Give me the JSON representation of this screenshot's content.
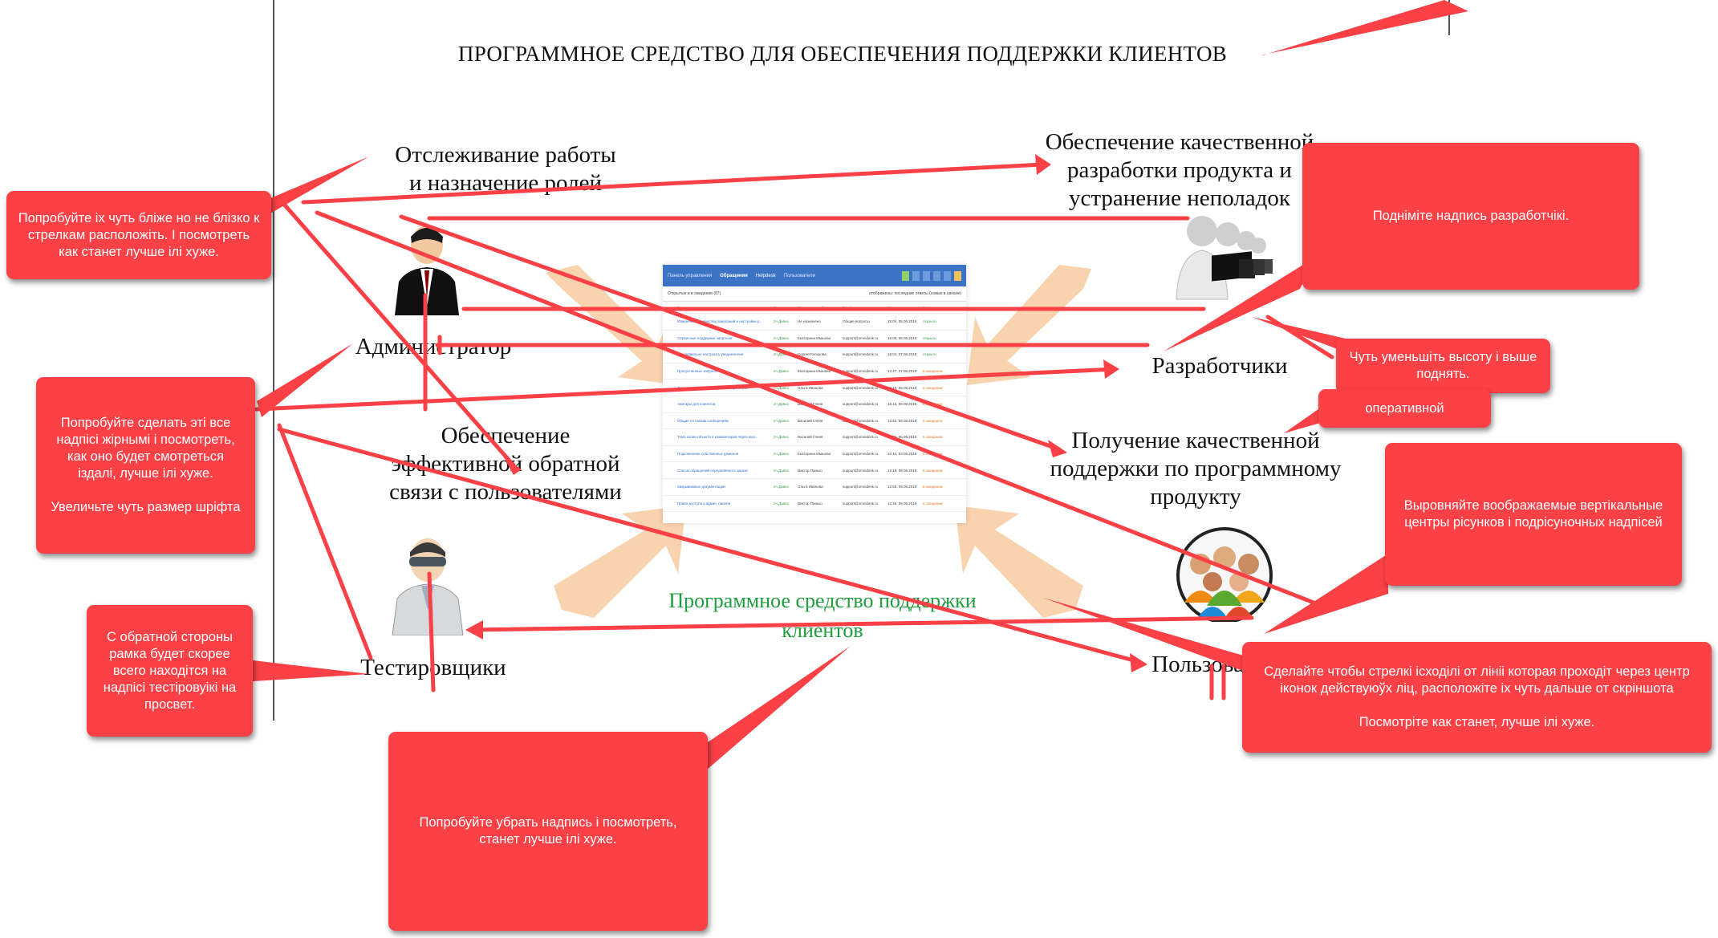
{
  "title": "ПРОГРАММНОЕ СРЕДСТВО ДЛЯ ОБЕСПЕЧЕНИЯ ПОДДЕРЖКИ КЛИЕНТОВ",
  "center_caption": "Программное средство поддержки клиентов",
  "features": {
    "tracking": "Отслеживание работы\nи назначение ролей",
    "quality_dev": "Обеспечение качественной\nразработки продукта и\nустранение неполадок",
    "feedback": "Обеспечение\nэффективной обратной\nсвязи с пользователями",
    "support": "Получение качественной\nподдержки по программному\nпродукту"
  },
  "roles": {
    "admin": "Администратор",
    "developers": "Разработчики",
    "testers": "Тестировщики",
    "users": "Пользователи"
  },
  "callouts": [
    "Попробуйте іх чуть бліже но не блізко к стрелкам расположіть. І посмотреть как станет лучше ілі хуже.",
    "Поднiміте надпись разработчікі.",
    "Чуть уменьшіть высоту і выше поднять.",
    "оперативной",
    "Попробуйте сделать эті все надпісі жірнымі і посмотреть, как оно будет смотреться іздалі, лучше ілі хуже.\n\nУвеличьте чуть размер шріфта",
    "Выровняйте воображаемые вертікальные центры рісунков і подрісуночных надпісей",
    "С обратной стороны рамка будет скорее всего находітся на надпісі тестіровуікі на просвет.",
    "Сделайте чтобы стрелкі ісходілі от лініі которая проходіт через центр іконок действуюўх ліц, расположіте іх чуть дальше от скріншота\n\nПосмотріте как станет, лучше ілі хуже.",
    "Попробуйте убрать надпись і посмотреть, станет лучше ілі хуже."
  ],
  "screenshot": {
    "nav": [
      "Панель управления",
      "Обращения",
      "Helpdesk",
      "Пользователи"
    ],
    "filter_left": "Открытые и в ожидании (87)",
    "filter_right": "отображены: последние ответы (новые в начале)",
    "columns": [
      "Тема",
      "Статус",
      "Ответственный",
      "Email адрес",
      "Создано",
      "Статус"
    ],
    "rows": [
      [
        "Изменения количества пожеланий и настройки у...",
        "2ч Давно",
        "Не назначено",
        "Общие вопросы",
        "15:04, 08.06.2018",
        "открыто"
      ],
      [
        "Сервисные поддержки запросов",
        "2ч Давно",
        "Екатерина Иванова",
        "support@omnidesk.ru",
        "15:00, 08.06.2018",
        "открыто"
      ],
      [
        "Как правильно настроить уведомления",
        "2ч Давно",
        "Сергей Клецкова",
        "support@omnidesk.ru",
        "15:04, 07.06.2018",
        "открыто"
      ],
      [
        "Просроченные запросы",
        "2ч Давно",
        "Екатерина Иванова",
        "support@omnidesk.ru",
        "14:47, 07.06.2018",
        "в ожидании"
      ],
      [
        "Дополнительные поля данных в фильтрах",
        "2ч Давно",
        "Ольга Иванова",
        "support@omnidesk.ru",
        "16:10, 06.06.2018",
        "в ожидании"
      ],
      [
        "Аватары для клиентов",
        "2ч Давно",
        "Василий Глеев",
        "support@omnidesk.ru",
        "16:16, 06.06.2018",
        "в ожидании"
      ],
      [
        "Общие по новым сообщениям",
        "2ч Давно",
        "Василий Глеев",
        "support@omnidesk.ru",
        "12:52, 06.06.2018",
        "в ожидании"
      ],
      [
        "Тема копии объекта в комментарии через мол...",
        "2ч Давно",
        "Василий Глеев",
        "support@omnidesk.ru",
        "10:02, 06.06.2018",
        "в ожидании"
      ],
      [
        "Подключение собственных доменов",
        "2ч Давно",
        "Екатерина Иванова",
        "support@omnidesk.ru",
        "10:44, 02.06.2018",
        "в ожидании"
      ],
      [
        "Список обращений определённого заказа",
        "2ч Давно",
        "Виктор Панько",
        "support@omnidesk.ru",
        "12:16, 08.06.2018",
        "в ожидании"
      ],
      [
        "Закрываемые документации",
        "2ч Давно",
        "Ольга Иванова",
        "support@omnidesk.ru",
        "12:55, 08.06.2018",
        "в ожидании"
      ],
      [
        "Права доступа к админ. панели",
        "2ч Давно",
        "Виктор Панько",
        "support@omnidesk.ru",
        "13:46, 08.06.2018",
        "в ожидании"
      ]
    ]
  },
  "colors": {
    "callout": "#fb4046",
    "caption_green": "#1f9e3d",
    "bg_arrows": "#f8caa0",
    "nav_blue": "#3c73c4"
  }
}
